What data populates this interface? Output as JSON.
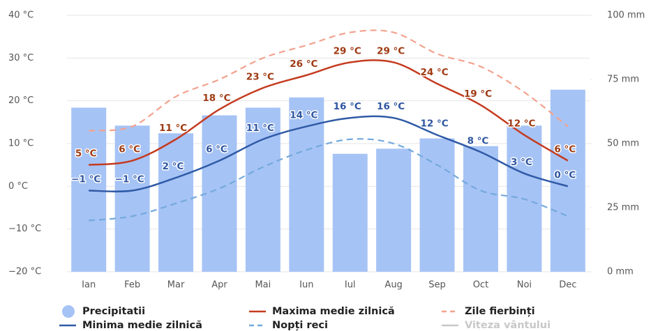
{
  "chart_data": {
    "type": "combo",
    "categories": [
      "Ian",
      "Feb",
      "Mar",
      "Apr",
      "Mai",
      "Iun",
      "Iul",
      "Aug",
      "Sep",
      "Oct",
      "Noi",
      "Dec"
    ],
    "ylim": [
      -20,
      40
    ],
    "yticks": [
      {
        "value": -20,
        "label": "−20 °C"
      },
      {
        "value": -10,
        "label": "−10 °C"
      },
      {
        "value": 0,
        "label": "0 °C"
      },
      {
        "value": 10,
        "label": "10 °C"
      },
      {
        "value": 20,
        "label": "20 °C"
      },
      {
        "value": 30,
        "label": "30 °C"
      },
      {
        "value": 40,
        "label": "40 °C"
      }
    ],
    "y2lim": [
      0,
      100
    ],
    "y2ticks": [
      {
        "value": 0,
        "label": "0 mm"
      },
      {
        "value": 25,
        "label": "25 mm"
      },
      {
        "value": 50,
        "label": "50 mm"
      },
      {
        "value": 75,
        "label": "75 mm"
      },
      {
        "value": 100,
        "label": "100 mm"
      }
    ],
    "grid": true,
    "legend": "bottom",
    "series": [
      {
        "name": "Precipitatii",
        "type": "bar",
        "axis": "y2",
        "color": "#a6c3f5",
        "values": [
          64,
          57,
          54,
          61,
          64,
          68,
          46,
          48,
          52,
          49,
          57,
          71
        ]
      },
      {
        "name": "Maxima medie zilnică",
        "type": "line",
        "color": "#c43b1f",
        "values": [
          5,
          6,
          11,
          18,
          23,
          26,
          29,
          29,
          24,
          19,
          12,
          6
        ],
        "value_labels": [
          "5 °C",
          "6 °C",
          "11 °C",
          "18 °C",
          "23 °C",
          "26 °C",
          "29 °C",
          "29 °C",
          "24 °C",
          "19 °C",
          "12 °C",
          "6 °C"
        ],
        "label_color": "#9e3a12"
      },
      {
        "name": "Zile fierbinți",
        "type": "line",
        "dashed": true,
        "color": "#f2a28e",
        "values": [
          13,
          14,
          21,
          25,
          30,
          33,
          36,
          36,
          31,
          28,
          22,
          14
        ]
      },
      {
        "name": "Minima medie zilnică",
        "type": "line",
        "color": "#2f5aa6",
        "values": [
          -1,
          -1,
          2,
          6,
          11,
          14,
          16,
          16,
          12,
          8,
          3,
          0
        ],
        "value_labels": [
          "−1 °C",
          "−1 °C",
          "2 °C",
          "6 °C",
          "11 °C",
          "14 °C",
          "16 °C",
          "16 °C",
          "12 °C",
          "8 °C",
          "3 °C",
          "0 °C"
        ],
        "label_color": "#2f56a0"
      },
      {
        "name": "Nopți reci",
        "type": "line",
        "dashed": true,
        "color": "#73a9dc",
        "values": [
          -8,
          -7,
          -4,
          -0.5,
          4.5,
          8.5,
          11,
          10,
          5,
          -1,
          -3,
          -7
        ]
      },
      {
        "name": "Viteza vântului",
        "type": "line",
        "hidden": true,
        "color": "#c8c8c8",
        "values": [
          null,
          null,
          null,
          null,
          null,
          null,
          null,
          null,
          null,
          null,
          null,
          null
        ]
      }
    ]
  }
}
